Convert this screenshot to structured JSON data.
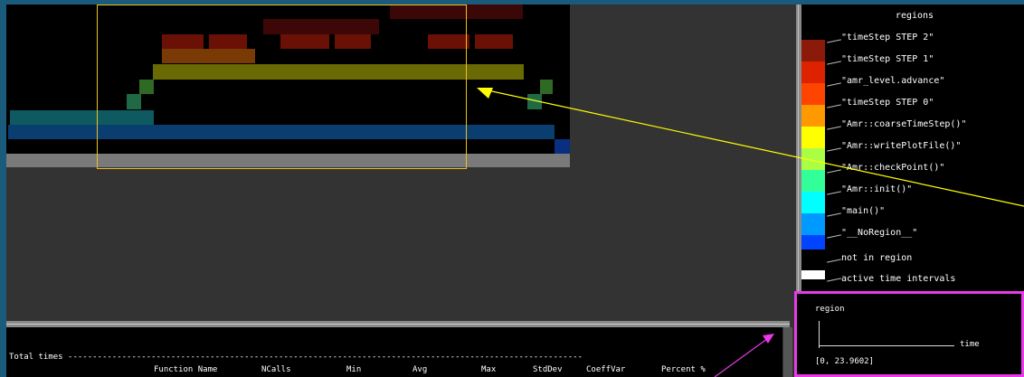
{
  "legend": {
    "title": "regions",
    "items": [
      {
        "label": "\"timeStep STEP 2\"",
        "color": "#8b1a0a"
      },
      {
        "label": "\"timeStep STEP 1\"",
        "color": "#dd2200"
      },
      {
        "label": "\"amr_level.advance\"",
        "color": "#ff4400"
      },
      {
        "label": "\"timeStep STEP 0\"",
        "color": "#ff9900"
      },
      {
        "label": "\"Amr::coarseTimeStep()\"",
        "color": "#ffff00"
      },
      {
        "label": "\"Amr::writePlotFile()\"",
        "color": "#aaff44"
      },
      {
        "label": "\"Amr::checkPoint()\"",
        "color": "#33ff99"
      },
      {
        "label": "\"Amr::init()\"",
        "color": "#00ffff"
      },
      {
        "label": "\"main()\"",
        "color": "#0099ff"
      },
      {
        "label": "\"__NoRegion__\"",
        "color": "#0044ff"
      }
    ],
    "not_in_region": "not in region",
    "active_intervals": "active time intervals"
  },
  "stats": {
    "heading": "Total times",
    "columns": [
      "Function Name",
      "NCalls",
      "Min",
      "Avg",
      "Max",
      "StdDev",
      "CoeffVar",
      "Percent %"
    ]
  },
  "info": {
    "region_label": "region",
    "time_label": "time",
    "range": "[0,  23.9602]"
  },
  "colors": {
    "highlight": "#e83ae8",
    "arrow": "#ffff00",
    "selection": "#f0c020"
  }
}
